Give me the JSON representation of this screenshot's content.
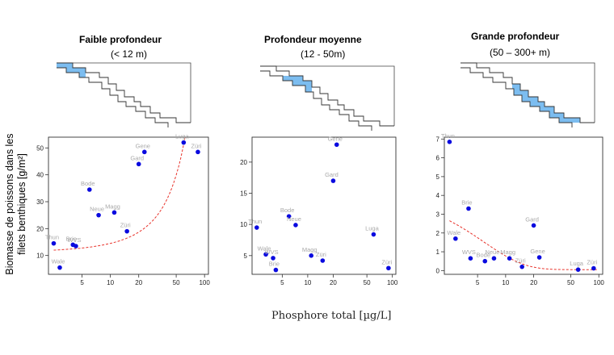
{
  "panels": [
    {
      "title": "Faible profondeur",
      "subtitle": "(< 12 m)",
      "highlight": "shallow",
      "chart_data": {
        "type": "scatter",
        "xscale": "log",
        "xlim": [
          2.2,
          110
        ],
        "ylim": [
          3,
          54
        ],
        "xticks": [
          5,
          10,
          20,
          50,
          100
        ],
        "xticklabels": [
          "5",
          "10",
          "20",
          "50",
          "100"
        ],
        "yticks": [
          10,
          20,
          30,
          40,
          50
        ],
        "points": [
          {
            "label": "Thun",
            "x": 2.5,
            "y": 14.5
          },
          {
            "label": "Brie",
            "x": 4.0,
            "y": 14.0
          },
          {
            "label": "WVS",
            "x": 4.3,
            "y": 13.5
          },
          {
            "label": "Wale",
            "x": 2.9,
            "y": 5.5
          },
          {
            "label": "Bode",
            "x": 6.0,
            "y": 34.5
          },
          {
            "label": "Neue",
            "x": 7.5,
            "y": 25.0
          },
          {
            "label": "Magg",
            "x": 11.0,
            "y": 26.0
          },
          {
            "label": "Züri",
            "x": 15.0,
            "y": 19.0
          },
          {
            "label": "Gard",
            "x": 20.0,
            "y": 44.0
          },
          {
            "label": "Gene",
            "x": 23.0,
            "y": 48.5
          },
          {
            "label": "Luga",
            "x": 60.0,
            "y": 52.0
          },
          {
            "label": "Züri",
            "x": 85.0,
            "y": 48.5
          }
        ],
        "fit": {
          "kind": "exponential",
          "x_start": 2.5,
          "x_end": 62,
          "y_at_start": 12.0,
          "y_at_end": 54
        }
      }
    },
    {
      "title": "Profondeur moyenne",
      "subtitle": "(12 - 50m)",
      "highlight": "medium",
      "chart_data": {
        "type": "scatter",
        "xscale": "log",
        "xlim": [
          2.2,
          110
        ],
        "ylim": [
          2,
          24
        ],
        "xticks": [
          5,
          10,
          20,
          50,
          100
        ],
        "xticklabels": [
          "5",
          "10",
          "20",
          "50",
          "100"
        ],
        "yticks": [
          5,
          10,
          15,
          20
        ],
        "points": [
          {
            "label": "Thun",
            "x": 2.5,
            "y": 9.5
          },
          {
            "label": "Wale",
            "x": 3.2,
            "y": 5.2
          },
          {
            "label": "WVS",
            "x": 3.9,
            "y": 4.6
          },
          {
            "label": "Brie",
            "x": 4.2,
            "y": 2.7
          },
          {
            "label": "Bode",
            "x": 6.0,
            "y": 11.3
          },
          {
            "label": "Neue",
            "x": 7.2,
            "y": 9.9
          },
          {
            "label": "Magg",
            "x": 11.0,
            "y": 5.0
          },
          {
            "label": "Züri",
            "x": 15.0,
            "y": 4.2
          },
          {
            "label": "Gard",
            "x": 20.0,
            "y": 17.0
          },
          {
            "label": "Gene",
            "x": 22.0,
            "y": 22.8
          },
          {
            "label": "Luga",
            "x": 60.0,
            "y": 8.4
          },
          {
            "label": "Züri",
            "x": 90.0,
            "y": 3.0
          }
        ]
      }
    },
    {
      "title": "Grande profondeur",
      "subtitle": "(50 – 300+ m)",
      "highlight": "deep",
      "chart_data": {
        "type": "scatter",
        "xscale": "log",
        "xlim": [
          2.2,
          110
        ],
        "ylim": [
          -0.2,
          7.1
        ],
        "xticks": [
          5,
          10,
          20,
          50,
          100
        ],
        "xticklabels": [
          "5",
          "10",
          "20",
          "50",
          "100"
        ],
        "yticks": [
          0,
          1,
          2,
          3,
          4,
          5,
          6,
          7
        ],
        "points": [
          {
            "label": "Thun",
            "x": 2.5,
            "y": 6.85
          },
          {
            "label": "Brie",
            "x": 4.0,
            "y": 3.3
          },
          {
            "label": "Wale",
            "x": 2.9,
            "y": 1.7
          },
          {
            "label": "WVS",
            "x": 4.2,
            "y": 0.65
          },
          {
            "label": "Bode",
            "x": 6.0,
            "y": 0.5
          },
          {
            "label": "Neue",
            "x": 7.5,
            "y": 0.65
          },
          {
            "label": "Magg",
            "x": 11.0,
            "y": 0.65
          },
          {
            "label": "Züri",
            "x": 15.0,
            "y": 0.2
          },
          {
            "label": "Gard",
            "x": 20.0,
            "y": 2.4
          },
          {
            "label": "Gene",
            "x": 23.0,
            "y": 0.7
          },
          {
            "label": "Luga",
            "x": 60.0,
            "y": 0.05
          },
          {
            "label": "Züri",
            "x": 88.0,
            "y": 0.12
          }
        ],
        "fit": {
          "kind": "exponential-decay",
          "x_start": 2.5,
          "x_end": 95,
          "y_at_start": 2.65,
          "y_asymptote": 0.05,
          "rate": 0.17
        }
      }
    }
  ],
  "axes": {
    "ylabel_line1": "Biomasse de poissons dans les",
    "ylabel_line2": "filets benthiques [g/m²]",
    "xlabel": "Phosphore total [µg/L]"
  },
  "colors": {
    "point": "#0a0adf",
    "fit": "#e8322a",
    "highlight": "#7cbdf0",
    "label": "#a9a9a9",
    "axis": "#333333"
  }
}
